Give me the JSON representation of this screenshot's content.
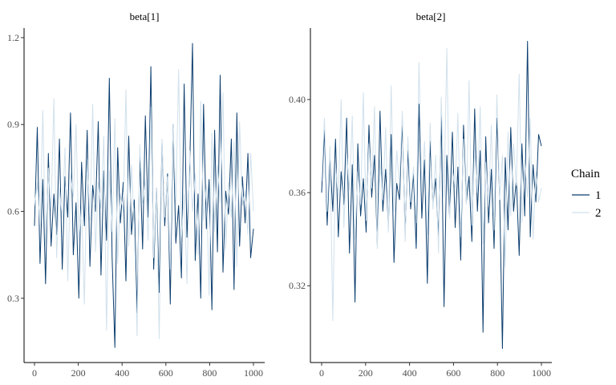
{
  "chart_data": {
    "type": "line",
    "legend": {
      "title": "Chain",
      "placement": "right",
      "entries": [
        "1",
        "2"
      ]
    },
    "series_colors": {
      "1": "#0b3d6e",
      "2": "#d1e1ec"
    },
    "panels": [
      {
        "title": "beta[1]",
        "xlim": [
          0,
          1000
        ],
        "ylim": [
          0.078,
          1.233
        ],
        "xticks": [
          0,
          200,
          400,
          600,
          800,
          1000
        ],
        "xtick_labels": [
          "0",
          "200",
          "400",
          "600",
          "800",
          "1000"
        ],
        "yticks": [
          0.3,
          0.6,
          0.9,
          1.2
        ],
        "ytick_labels": [
          "0.3",
          "0.6",
          "0.9",
          "1.2"
        ],
        "series": [
          {
            "name": "1",
            "values": [
              0.55,
              0.89,
              0.42,
              0.71,
              0.35,
              0.8,
              0.48,
              0.66,
              0.52,
              0.85,
              0.4,
              0.72,
              0.58,
              0.94,
              0.45,
              0.63,
              0.3,
              0.77,
              0.55,
              0.88,
              0.41,
              0.69,
              0.6,
              0.91,
              0.38,
              0.74,
              0.5,
              1.06,
              0.44,
              0.13,
              0.82,
              0.56,
              0.7,
              0.36,
              0.86,
              0.52,
              0.64,
              0.25,
              0.79,
              0.47,
              0.93,
              0.58,
              1.1,
              0.4,
              0.68,
              0.32,
              0.84,
              0.55,
              0.73,
              0.28,
              0.9,
              0.49,
              0.62,
              0.37,
              1.04,
              0.51,
              0.75,
              1.18,
              0.43,
              0.66,
              0.3,
              0.97,
              0.54,
              0.71,
              0.26,
              0.88,
              0.46,
              1.07,
              0.39,
              0.67,
              0.59,
              0.85,
              0.33,
              0.94,
              0.48,
              0.72,
              0.56,
              0.8,
              0.44,
              0.54
            ]
          },
          {
            "name": "2",
            "values": [
              0.62,
              0.7,
              0.55,
              0.95,
              0.48,
              0.75,
              0.6,
              0.99,
              0.44,
              0.68,
              0.58,
              0.82,
              0.36,
              0.73,
              0.65,
              0.9,
              0.5,
              0.62,
              0.28,
              0.78,
              0.57,
              0.97,
              0.46,
              0.7,
              0.61,
              0.86,
              0.19,
              0.74,
              0.53,
              0.92,
              0.42,
              0.66,
              0.6,
              1.02,
              0.48,
              0.76,
              0.55,
              0.17,
              0.83,
              0.63,
              0.71,
              0.5,
              0.96,
              0.44,
              0.68,
              0.16,
              0.85,
              0.58,
              0.72,
              0.4,
              0.9,
              0.62,
              1.09,
              0.51,
              0.66,
              0.35,
              0.81,
              0.6,
              0.73,
              0.45,
              0.98,
              0.57,
              0.69,
              0.31,
              0.87,
              0.53,
              0.76,
              0.63,
              1.01,
              0.47,
              0.7,
              0.58,
              0.84,
              0.41,
              0.91,
              0.62,
              0.67,
              0.52,
              0.8,
              0.6
            ]
          }
        ]
      },
      {
        "title": "beta[2]",
        "xlim": [
          0,
          1000
        ],
        "ylim": [
          0.287,
          0.4307
        ],
        "xticks": [
          0,
          200,
          400,
          600,
          800,
          1000
        ],
        "xtick_labels": [
          "0",
          "200",
          "400",
          "600",
          "800",
          "1000"
        ],
        "yticks": [
          0.32,
          0.36,
          0.4
        ],
        "ytick_labels": [
          "0.32",
          "0.36",
          "0.40"
        ],
        "series": [
          {
            "name": "1",
            "values": [
              0.36,
              0.387,
              0.346,
              0.375,
              0.352,
              0.383,
              0.341,
              0.369,
              0.355,
              0.392,
              0.334,
              0.372,
              0.313,
              0.381,
              0.35,
              0.366,
              0.343,
              0.389,
              0.358,
              0.376,
              0.338,
              0.395,
              0.352,
              0.37,
              0.346,
              0.385,
              0.33,
              0.364,
              0.357,
              0.391,
              0.342,
              0.378,
              0.353,
              0.368,
              0.336,
              0.398,
              0.349,
              0.374,
              0.321,
              0.382,
              0.355,
              0.366,
              0.34,
              0.393,
              0.311,
              0.376,
              0.35,
              0.386,
              0.345,
              0.371,
              0.331,
              0.389,
              0.356,
              0.367,
              0.339,
              0.396,
              0.352,
              0.378,
              0.3,
              0.384,
              0.347,
              0.37,
              0.336,
              0.392,
              0.358,
              0.293,
              0.375,
              0.344,
              0.388,
              0.352,
              0.366,
              0.333,
              0.381,
              0.35,
              0.425,
              0.341,
              0.372,
              0.356,
              0.385,
              0.38
            ]
          },
          {
            "name": "2",
            "values": [
              0.365,
              0.392,
              0.352,
              0.38,
              0.305,
              0.372,
              0.358,
              0.4,
              0.345,
              0.377,
              0.361,
              0.393,
              0.34,
              0.369,
              0.355,
              0.403,
              0.348,
              0.381,
              0.362,
              0.397,
              0.336,
              0.374,
              0.357,
              0.388,
              0.343,
              0.406,
              0.352,
              0.378,
              0.364,
              0.395,
              0.339,
              0.384,
              0.356,
              0.371,
              0.347,
              0.416,
              0.36,
              0.382,
              0.342,
              0.39,
              0.353,
              0.376,
              0.334,
              0.401,
              0.358,
              0.422,
              0.349,
              0.37,
              0.362,
              0.394,
              0.341,
              0.383,
              0.355,
              0.408,
              0.346,
              0.379,
              0.36,
              0.397,
              0.338,
              0.373,
              0.354,
              0.389,
              0.344,
              0.402,
              0.357,
              0.376,
              0.328,
              0.386,
              0.35,
              0.381,
              0.363,
              0.411,
              0.347,
              0.374,
              0.358,
              0.392,
              0.34,
              0.369,
              0.356,
              0.362
            ]
          }
        ]
      }
    ]
  }
}
